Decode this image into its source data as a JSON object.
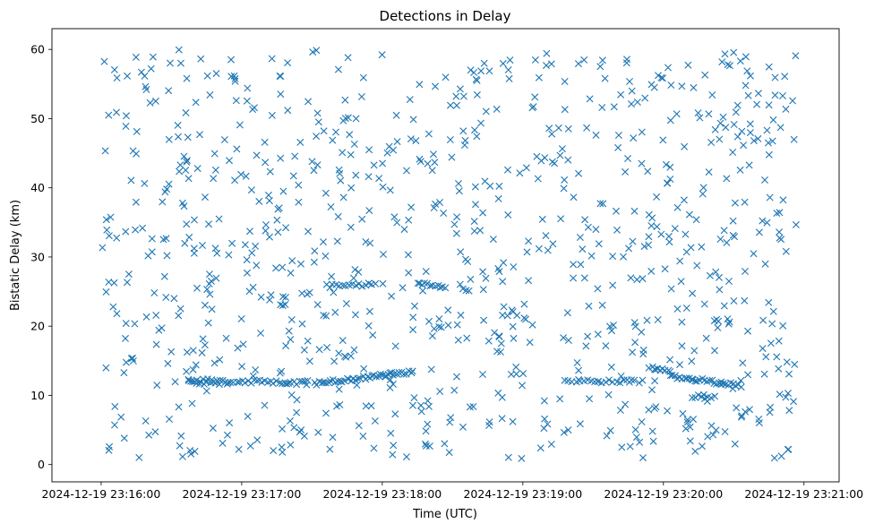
{
  "chart_data": {
    "type": "scatter",
    "title": "Detections in Delay",
    "xlabel": "Time (UTC)",
    "ylabel": "Bistatic Delay (km)",
    "marker": "x",
    "color": "#1f77b4",
    "xlim_minutes": [
      -0.35,
      5.25
    ],
    "ylim": [
      -2.5,
      63
    ],
    "xticks": [
      {
        "value": 0,
        "label": "2024-12-19 23:16:00"
      },
      {
        "value": 1,
        "label": "2024-12-19 23:17:00"
      },
      {
        "value": 2,
        "label": "2024-12-19 23:18:00"
      },
      {
        "value": 3,
        "label": "2024-12-19 23:19:00"
      },
      {
        "value": 4,
        "label": "2024-12-19 23:20:00"
      },
      {
        "value": 5,
        "label": "2024-12-19 23:21:00"
      }
    ],
    "yticks": [
      0,
      10,
      20,
      30,
      40,
      50,
      60
    ],
    "track_segments": [
      {
        "t0": 0.62,
        "t1": 1.45,
        "d0": 12.2,
        "d1": 11.8,
        "n": 42
      },
      {
        "t0": 1.52,
        "t1": 2.22,
        "d0": 11.7,
        "d1": 13.4,
        "n": 44
      },
      {
        "t0": 3.3,
        "t1": 3.85,
        "d0": 12.1,
        "d1": 12.0,
        "n": 22
      },
      {
        "t0": 3.9,
        "t1": 4.05,
        "d0": 14.0,
        "d1": 13.5,
        "n": 9
      },
      {
        "t0": 4.05,
        "t1": 4.55,
        "d0": 12.8,
        "d1": 11.4,
        "n": 30
      },
      {
        "t0": 1.6,
        "t1": 1.95,
        "d0": 25.8,
        "d1": 26.0,
        "n": 16
      },
      {
        "t0": 2.25,
        "t1": 2.45,
        "d0": 26.2,
        "d1": 25.6,
        "n": 12
      },
      {
        "t0": 2.55,
        "t1": 2.62,
        "d0": 25.8,
        "d1": 25.2,
        "n": 4
      },
      {
        "t0": 4.2,
        "t1": 4.36,
        "d0": 9.9,
        "d1": 9.8,
        "n": 8
      },
      {
        "t0": 0.62,
        "t1": 0.84,
        "d0": 11.9,
        "d1": 11.7,
        "n": 9
      }
    ],
    "noise_points": {
      "count": 900,
      "t_range": [
        0,
        4.95
      ],
      "delay_range": [
        0.8,
        60
      ]
    }
  }
}
